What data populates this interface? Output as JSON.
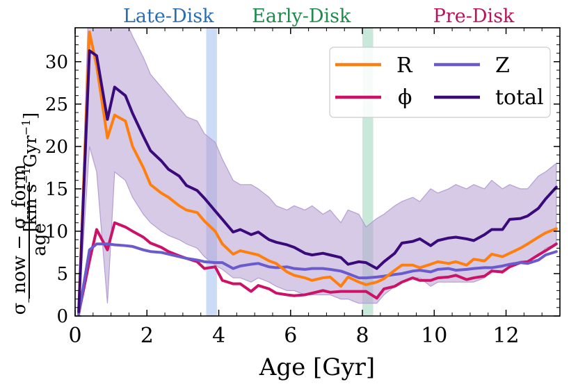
{
  "chart_data": {
    "type": "line",
    "xlabel": "Age [Gyr]",
    "ylabel": {
      "prefix": "[km s",
      "exp1": "−1",
      "mid": "Gyr",
      "exp2": "−1",
      "suffix": "]",
      "fraction_numerator": "σ_now − σ_form",
      "fraction_denominator": "age"
    },
    "xlim": [
      0,
      13.5
    ],
    "ylim": [
      0,
      34
    ],
    "xticks": [
      0,
      2,
      4,
      6,
      8,
      10,
      12
    ],
    "yticks": [
      0,
      5,
      10,
      15,
      20,
      25,
      30
    ],
    "colors": {
      "R": "#ff7f0e",
      "phi": "#cc1166",
      "Z": "#6a5acd",
      "total": "#3a0a7a",
      "band": "#b49fd2",
      "late_disk_region": "#aac4f2",
      "early_disk_region": "#a6d8c0"
    },
    "regions": [
      {
        "label": "Late-Disk",
        "x0": 3.65,
        "x1": 3.95,
        "color": "#2a6db2",
        "fill": "#aac4f2",
        "label_x": 2.6
      },
      {
        "label": "Early-Disk",
        "x0": 8.0,
        "x1": 8.3,
        "color": "#1e8a4c",
        "fill": "#a6d8c0",
        "label_x": 6.3
      },
      {
        "label": "Pre-Disk",
        "x0": null,
        "x1": null,
        "color": "#b5155a",
        "fill": null,
        "label_x": 11.1
      }
    ],
    "legend": {
      "placement": "top-right",
      "entries": [
        {
          "key": "R",
          "label": "R"
        },
        {
          "key": "phi",
          "label": "ϕ"
        },
        {
          "key": "Z",
          "label": "Z"
        },
        {
          "key": "total",
          "label": "total"
        }
      ]
    },
    "x": [
      0.1,
      0.4,
      0.6,
      0.9,
      1.1,
      1.4,
      1.6,
      1.9,
      2.1,
      2.4,
      2.6,
      2.9,
      3.1,
      3.4,
      3.6,
      3.9,
      4.1,
      4.4,
      4.6,
      4.9,
      5.1,
      5.4,
      5.6,
      5.9,
      6.1,
      6.4,
      6.6,
      6.9,
      7.1,
      7.4,
      7.6,
      7.9,
      8.1,
      8.4,
      8.6,
      8.9,
      9.1,
      9.4,
      9.6,
      9.9,
      10.1,
      10.4,
      10.6,
      10.9,
      11.1,
      11.4,
      11.6,
      11.9,
      12.1,
      12.4,
      12.6,
      12.9,
      13.1,
      13.4
    ],
    "series": [
      {
        "key": "R",
        "name": "R",
        "values": [
          0.5,
          33.5,
          29.5,
          21,
          23.7,
          23,
          20,
          17.5,
          15.5,
          14.5,
          14,
          13,
          12.5,
          12.2,
          11.2,
          10,
          8.5,
          7.3,
          7.7,
          7.4,
          7.2,
          6.5,
          6.2,
          5.2,
          4.8,
          4.5,
          4.2,
          4.5,
          4.6,
          3.5,
          4.6,
          4,
          3.7,
          4,
          4.4,
          5.4,
          6,
          6,
          5.7,
          6.1,
          6.4,
          6.2,
          6.4,
          6,
          6.7,
          6.5,
          7.3,
          7,
          7.4,
          8,
          8.5,
          9.3,
          9.8,
          10.3
        ]
      },
      {
        "key": "phi",
        "name": "ϕ",
        "values": [
          0.3,
          6.5,
          10.2,
          7.8,
          11,
          10.5,
          10,
          9.3,
          8.6,
          8.1,
          7.6,
          7.1,
          6.8,
          6.4,
          5.6,
          5.8,
          4.2,
          3.8,
          3.8,
          2.9,
          3.6,
          3.2,
          2.7,
          2.5,
          2.4,
          2.5,
          2.7,
          3,
          2.8,
          2.9,
          2.9,
          2.9,
          2.9,
          2.1,
          3.2,
          3.5,
          4,
          4.5,
          4.2,
          4.2,
          4.5,
          4.6,
          4.8,
          4.3,
          4.5,
          4.7,
          5.3,
          5.2,
          5.8,
          6.3,
          6.4,
          7.2,
          7.7,
          8.5
        ]
      },
      {
        "key": "Z",
        "name": "Z",
        "values": [
          0.2,
          7.8,
          8.5,
          8.5,
          8.4,
          8.3,
          8.2,
          7.8,
          7.6,
          7.5,
          7.3,
          7,
          6.8,
          6.6,
          6.4,
          6.3,
          6.3,
          5.6,
          5.9,
          6.1,
          6.2,
          5.8,
          5.7,
          5.8,
          5.6,
          5.5,
          5.6,
          5.6,
          5.5,
          5.3,
          5,
          4.5,
          4.5,
          4.6,
          4.7,
          4.9,
          5,
          5.3,
          5.4,
          5.2,
          5.5,
          5.6,
          5.4,
          5.5,
          5.6,
          5.7,
          5.7,
          5.9,
          6.1,
          6.3,
          6.2,
          6.6,
          7.2,
          7.6
        ]
      },
      {
        "key": "total",
        "name": "total",
        "values": [
          0.5,
          31.3,
          30.7,
          23.2,
          27,
          26,
          23.9,
          21.2,
          19.5,
          18.3,
          17.3,
          16.5,
          15.4,
          14.8,
          13.9,
          12.4,
          11.4,
          9.9,
          10.2,
          9.6,
          9.9,
          9,
          8.7,
          8.4,
          8.1,
          7.4,
          7.2,
          7.4,
          7.2,
          6.9,
          6.1,
          6.4,
          6.3,
          5.6,
          6.4,
          7.4,
          8.6,
          8.8,
          9.1,
          8.3,
          8.9,
          9.2,
          9.3,
          9.1,
          8.9,
          9.6,
          10.2,
          10.2,
          11.4,
          11.5,
          11.8,
          12.7,
          13.8,
          15.2
        ]
      }
    ],
    "band_upper": [
      0.5,
      40,
      40,
      38,
      37.5,
      35,
      33,
      30.5,
      28.5,
      27,
      26,
      24.5,
      23.5,
      23,
      21.5,
      20.5,
      18.5,
      16,
      15.5,
      15.5,
      15,
      14,
      13,
      12.5,
      13,
      12.5,
      13,
      12,
      12.5,
      11,
      12.5,
      12,
      10.5,
      11.5,
      12,
      13,
      13.5,
      14,
      13.5,
      15,
      14.5,
      15,
      15.5,
      15,
      15.5,
      15,
      16,
      15,
      15.5,
      15,
      15,
      16.5,
      17,
      18
    ],
    "band_lower": [
      0.2,
      20,
      17,
      1.5,
      17,
      16,
      14,
      12,
      11,
      10,
      9.5,
      9,
      8.5,
      8,
      7,
      6,
      5.5,
      4.5,
      4.5,
      4,
      4.5,
      4,
      3.5,
      3,
      3,
      2.5,
      2.5,
      2.5,
      2.5,
      2,
      2,
      1.5,
      1.5,
      1.5,
      2.5,
      3.5,
      4,
      4.5,
      4.5,
      3.5,
      4,
      4,
      4,
      4,
      4,
      4.5,
      5.5,
      5,
      6,
      6.5,
      6.5,
      7,
      8,
      8.5
    ]
  }
}
